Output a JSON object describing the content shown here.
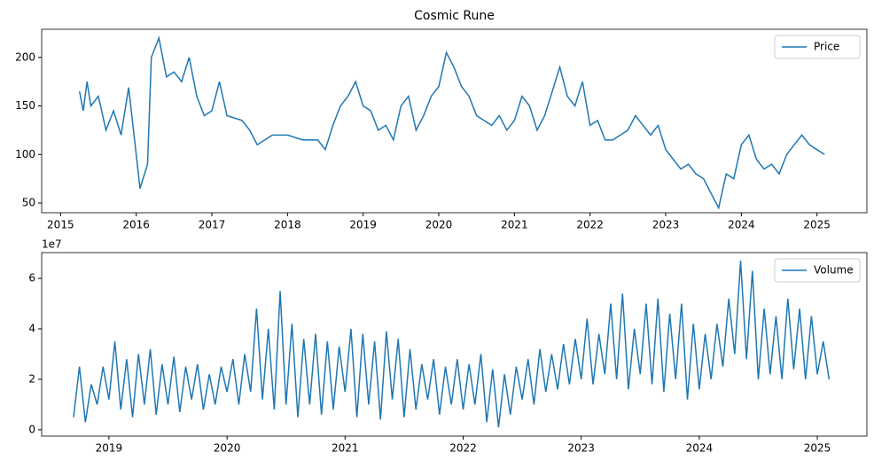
{
  "chart_data": [
    {
      "type": "line",
      "title": "Cosmic Rune",
      "x": [
        2015.25,
        2015.3,
        2015.35,
        2015.4,
        2015.5,
        2015.6,
        2015.7,
        2015.8,
        2015.9,
        2016.0,
        2016.05,
        2016.15,
        2016.2,
        2016.3,
        2016.4,
        2016.5,
        2016.6,
        2016.7,
        2016.8,
        2016.9,
        2017.0,
        2017.1,
        2017.2,
        2017.4,
        2017.5,
        2017.6,
        2017.8,
        2018.0,
        2018.2,
        2018.4,
        2018.5,
        2018.6,
        2018.7,
        2018.8,
        2018.9,
        2019.0,
        2019.1,
        2019.2,
        2019.3,
        2019.4,
        2019.5,
        2019.6,
        2019.7,
        2019.8,
        2019.9,
        2020.0,
        2020.1,
        2020.2,
        2020.3,
        2020.4,
        2020.5,
        2020.6,
        2020.7,
        2020.8,
        2020.9,
        2021.0,
        2021.1,
        2021.2,
        2021.3,
        2021.4,
        2021.5,
        2021.6,
        2021.7,
        2021.8,
        2021.9,
        2022.0,
        2022.1,
        2022.2,
        2022.3,
        2022.4,
        2022.5,
        2022.6,
        2022.7,
        2022.8,
        2022.9,
        2023.0,
        2023.1,
        2023.2,
        2023.3,
        2023.4,
        2023.5,
        2023.6,
        2023.7,
        2023.8,
        2023.9,
        2024.0,
        2024.1,
        2024.2,
        2024.3,
        2024.4,
        2024.5,
        2024.6,
        2024.7,
        2024.8,
        2024.9,
        2025.0,
        2025.1
      ],
      "series": [
        {
          "name": "Price",
          "color": "#1f77b4",
          "values": [
            165,
            145,
            175,
            150,
            160,
            125,
            145,
            120,
            169,
            100,
            65,
            90,
            200,
            220,
            180,
            185,
            175,
            200,
            160,
            140,
            145,
            175,
            140,
            135,
            125,
            110,
            120,
            120,
            115,
            115,
            105,
            130,
            150,
            160,
            175,
            150,
            145,
            125,
            130,
            115,
            150,
            160,
            125,
            140,
            160,
            170,
            205,
            190,
            170,
            160,
            140,
            135,
            130,
            140,
            125,
            135,
            160,
            150,
            125,
            140,
            165,
            190,
            160,
            150,
            175,
            130,
            135,
            115,
            115,
            120,
            125,
            140,
            130,
            120,
            130,
            105,
            95,
            85,
            90,
            80,
            75,
            60,
            45,
            80,
            75,
            110,
            120,
            95,
            85,
            90,
            80,
            100,
            110,
            120,
            110,
            105,
            100
          ]
        }
      ],
      "xlim": [
        2014.75,
        2025.66
      ],
      "xticks": [
        2015,
        2016,
        2017,
        2018,
        2019,
        2020,
        2021,
        2022,
        2023,
        2024,
        2025
      ],
      "ylim": [
        40,
        229
      ],
      "yticks": [
        50,
        100,
        150,
        200
      ],
      "legend": "upper right"
    },
    {
      "type": "line",
      "y_offset_label": "1e7",
      "x": [
        2018.7,
        2018.75,
        2018.8,
        2018.85,
        2018.9,
        2018.95,
        2019.0,
        2019.05,
        2019.1,
        2019.15,
        2019.2,
        2019.25,
        2019.3,
        2019.35,
        2019.4,
        2019.45,
        2019.5,
        2019.55,
        2019.6,
        2019.65,
        2019.7,
        2019.75,
        2019.8,
        2019.85,
        2019.9,
        2019.95,
        2020.0,
        2020.05,
        2020.1,
        2020.15,
        2020.2,
        2020.25,
        2020.3,
        2020.35,
        2020.4,
        2020.45,
        2020.5,
        2020.55,
        2020.6,
        2020.65,
        2020.7,
        2020.75,
        2020.8,
        2020.85,
        2020.9,
        2020.95,
        2021.0,
        2021.05,
        2021.1,
        2021.15,
        2021.2,
        2021.25,
        2021.3,
        2021.35,
        2021.4,
        2021.45,
        2021.5,
        2021.55,
        2021.6,
        2021.65,
        2021.7,
        2021.75,
        2021.8,
        2021.85,
        2021.9,
        2021.95,
        2022.0,
        2022.05,
        2022.1,
        2022.15,
        2022.2,
        2022.25,
        2022.3,
        2022.35,
        2022.4,
        2022.45,
        2022.5,
        2022.55,
        2022.6,
        2022.65,
        2022.7,
        2022.75,
        2022.8,
        2022.85,
        2022.9,
        2022.95,
        2023.0,
        2023.05,
        2023.1,
        2023.15,
        2023.2,
        2023.25,
        2023.3,
        2023.35,
        2023.4,
        2023.45,
        2023.5,
        2023.55,
        2023.6,
        2023.65,
        2023.7,
        2023.75,
        2023.8,
        2023.85,
        2023.9,
        2023.95,
        2024.0,
        2024.05,
        2024.1,
        2024.15,
        2024.2,
        2024.25,
        2024.3,
        2024.35,
        2024.4,
        2024.45,
        2024.5,
        2024.55,
        2024.6,
        2024.65,
        2024.7,
        2024.75,
        2024.8,
        2024.85,
        2024.9,
        2024.95,
        2025.0,
        2025.05,
        2025.1
      ],
      "series": [
        {
          "name": "Volume",
          "color": "#1f77b4",
          "values": [
            0.5,
            2.5,
            0.3,
            1.8,
            1.0,
            2.5,
            1.2,
            3.5,
            0.8,
            2.8,
            0.5,
            3.0,
            1.0,
            3.2,
            0.6,
            2.6,
            1.0,
            2.9,
            0.7,
            2.5,
            1.2,
            2.6,
            0.8,
            2.2,
            1.0,
            2.5,
            1.5,
            2.8,
            1.0,
            3.0,
            1.5,
            4.8,
            1.2,
            4.0,
            0.8,
            5.5,
            1.0,
            4.2,
            0.5,
            3.6,
            1.0,
            3.8,
            0.6,
            3.5,
            0.8,
            3.3,
            1.5,
            4.0,
            0.5,
            3.8,
            1.0,
            3.5,
            0.4,
            3.9,
            1.2,
            3.6,
            0.5,
            3.2,
            0.8,
            2.6,
            1.2,
            2.8,
            0.6,
            2.5,
            1.0,
            2.8,
            0.8,
            2.6,
            1.0,
            3.0,
            0.3,
            2.4,
            0.1,
            2.2,
            0.6,
            2.5,
            1.2,
            2.8,
            1.0,
            3.2,
            1.5,
            3.0,
            1.6,
            3.4,
            1.8,
            3.6,
            2.0,
            4.4,
            1.8,
            3.8,
            2.2,
            5.0,
            2.0,
            5.4,
            1.6,
            4.0,
            2.2,
            5.0,
            1.8,
            5.2,
            1.5,
            4.6,
            2.0,
            5.0,
            1.2,
            4.2,
            1.6,
            3.8,
            2.0,
            4.2,
            2.5,
            5.2,
            3.0,
            6.7,
            2.8,
            6.3,
            2.0,
            4.8,
            2.2,
            4.5,
            2.0,
            5.2,
            2.4,
            4.8,
            2.0,
            4.5,
            2.2,
            3.5,
            2.0
          ]
        }
      ],
      "xlim": [
        2018.43,
        2025.42
      ],
      "xticks": [
        2019,
        2020,
        2021,
        2022,
        2023,
        2024,
        2025
      ],
      "ylim": [
        -0.25,
        7.02
      ],
      "yticks": [
        0,
        2,
        4,
        6
      ],
      "legend": "upper right"
    }
  ]
}
